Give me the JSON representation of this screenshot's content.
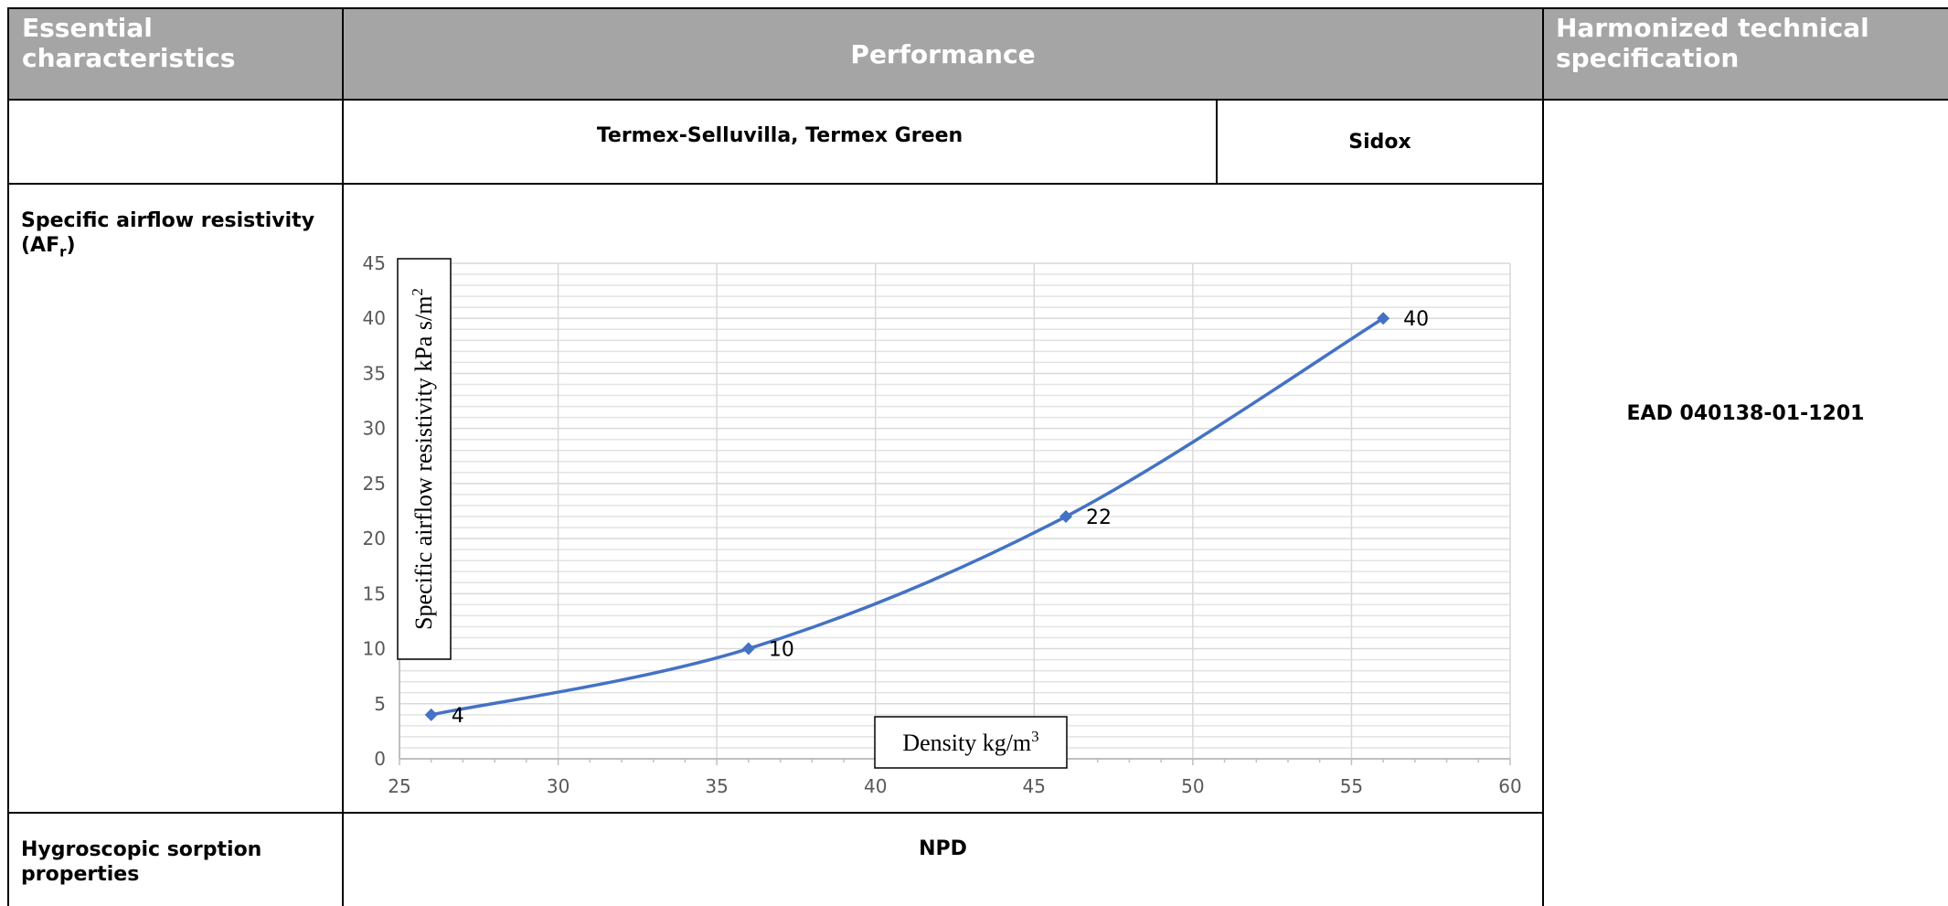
{
  "header": {
    "col1": "Essential characteristics",
    "col2": "Performance",
    "col3": "Harmonized technical specification"
  },
  "subheader": {
    "product_a": "Termex-Selluvilla, Termex Green",
    "product_b": "Sidox"
  },
  "rows": [
    {
      "characteristic": "Specific airflow resistivity (AF",
      "characteristic_sub": "r",
      "characteristic_end": ")"
    },
    {
      "characteristic": "Hygroscopic sorption properties",
      "performance": "NPD"
    }
  ],
  "specification": "EAD 040138-01-1201",
  "colors": {
    "header_bg": "#a5a5a5",
    "series": "#4472c4",
    "grid": "#d9d9d9"
  },
  "chart_data": {
    "type": "line",
    "xlabel": "Density kg/m",
    "xlabel_sup": "3",
    "ylabel": "Specific airflow resistivity kPa s/m",
    "ylabel_sup": "2",
    "xlim": [
      25,
      60
    ],
    "ylim": [
      0,
      45
    ],
    "xticks": [
      25,
      30,
      35,
      40,
      45,
      50,
      55,
      60
    ],
    "yticks": [
      0,
      5,
      10,
      15,
      20,
      25,
      30,
      35,
      40,
      45
    ],
    "grid": true,
    "smooth": true,
    "marker": "diamond",
    "x": [
      26,
      36,
      46,
      56
    ],
    "series": [
      {
        "values": [
          4,
          10,
          22,
          40
        ],
        "labels": [
          "4",
          "10",
          "22",
          "40"
        ]
      }
    ]
  }
}
